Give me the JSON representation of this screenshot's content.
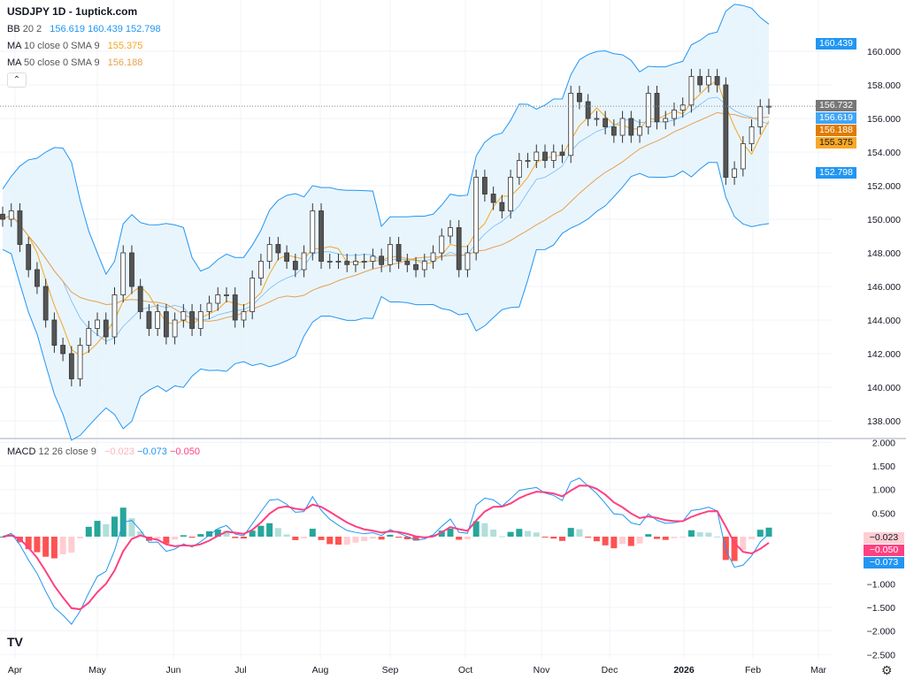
{
  "header": {
    "title": "USDJPY 1D - 1uptick.com"
  },
  "legend": {
    "bb": {
      "label": "BB",
      "params": "20 2",
      "basis": "156.619",
      "upper": "160.439",
      "lower": "152.798"
    },
    "ma10": {
      "label": "MA",
      "params": "10 close 0 SMA 9",
      "value": "155.375"
    },
    "ma50": {
      "label": "MA",
      "params": "50 close 0 SMA 9",
      "value": "156.188"
    },
    "macd": {
      "label": "MACD",
      "params": "12 26 close 9",
      "hist": "−0.023",
      "macd": "−0.073",
      "signal": "−0.050"
    }
  },
  "collapse_icon": "chevron-up-icon",
  "price_tags": {
    "last": "156.732",
    "bb_basis": "156.619",
    "ma50": "156.188",
    "ma10": "155.375",
    "bb_upper": "160.439",
    "bb_lower": "152.798"
  },
  "macd_tags": {
    "hist": "−0.023",
    "signal": "−0.050",
    "macd": "−0.073"
  },
  "colors": {
    "bb": "#2196f3",
    "bb_fill": "#e3f2fd",
    "ma10": "#f5a623",
    "ma50": "#e8a050",
    "macd": "#2196f3",
    "signal": "#ff4081",
    "hist_up": "#26a69a",
    "hist_up_weak": "#b2dfdb",
    "hist_down": "#ff5252",
    "hist_down_weak": "#ffcdd2",
    "tag_last": "#777777",
    "tag_ma50": "#e07b00",
    "tag_ma10": "#f9a825"
  },
  "settings_icon": "gear-icon",
  "logo_text": "TV",
  "chart_data": [
    {
      "type": "candlestick",
      "title": "USDJPY 1D",
      "ylim": [
        137,
        161
      ],
      "y_ticks": [
        "160.000",
        "158.000",
        "156.000",
        "154.000",
        "152.000",
        "150.000",
        "148.000",
        "146.000",
        "144.000",
        "142.000",
        "140.000",
        "138.000"
      ],
      "x_ticks": [
        "Apr",
        "May",
        "Jun",
        "Jul",
        "Aug",
        "Sep",
        "Oct",
        "Nov",
        "Dec",
        "2026",
        "Feb",
        "Mar"
      ],
      "grid": true,
      "closes": [
        150.0,
        150.5,
        148.5,
        147,
        146,
        144,
        142.5,
        142,
        140.5,
        142.5,
        143.5,
        144,
        143,
        145.5,
        148,
        146,
        144.5,
        143.5,
        144.5,
        143,
        144,
        144.5,
        143.5,
        144.5,
        145,
        145.5,
        145.5,
        144,
        144.5,
        146.5,
        147.5,
        148.5,
        148,
        147.5,
        147,
        148,
        150.5,
        147.5,
        147.5,
        147.5,
        147.3,
        147.5,
        147.5,
        147.8,
        147.3,
        148.5,
        147.5,
        147.3,
        147,
        147.5,
        148,
        149,
        149.5,
        147,
        148,
        152.5,
        151.5,
        151,
        150.5,
        152.5,
        153.5,
        153.5,
        154,
        153.5,
        154,
        153.8,
        157.5,
        157,
        156,
        156,
        155.5,
        155,
        156,
        155,
        155.5,
        157.5,
        155.8,
        156,
        156.5,
        156.8,
        158.5,
        158,
        158.5,
        158,
        152.5,
        153,
        154.5,
        155.5,
        156.7,
        156.73
      ],
      "overlays": [
        "BB 20 2",
        "MA 10",
        "MA 50"
      ]
    },
    {
      "type": "macd",
      "ylim": [
        -2.6,
        2.1
      ],
      "y_ticks": [
        "2.000",
        "1.500",
        "1.000",
        "0.500",
        "-1.000",
        "-1.500",
        "-2.000",
        "-2.500"
      ],
      "series": [
        {
          "name": "MACD"
        },
        {
          "name": "Signal"
        },
        {
          "name": "Histogram"
        }
      ]
    }
  ]
}
